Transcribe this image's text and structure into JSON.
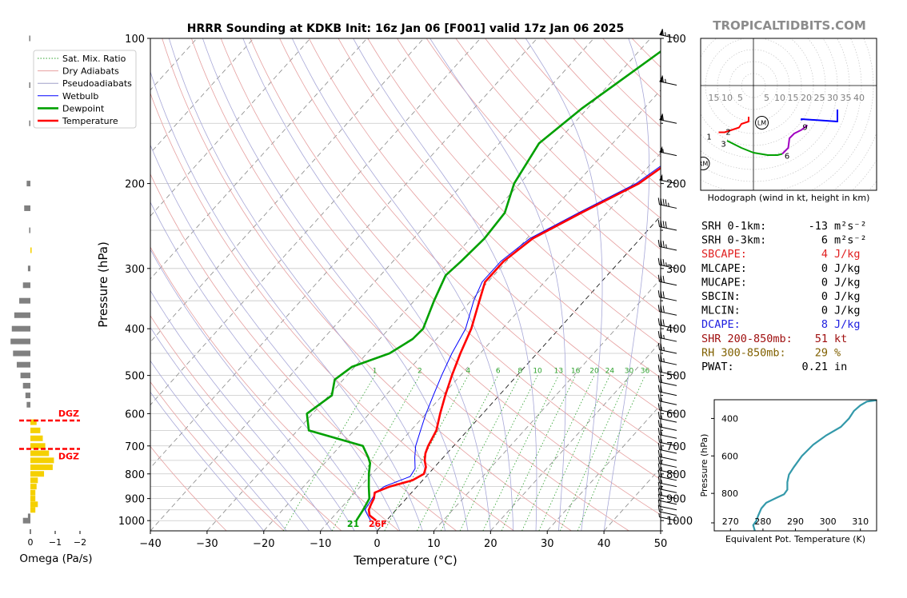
{
  "site": {
    "watermark": "TROPICALTIDBITS.COM"
  },
  "chart_data": [
    {
      "type": "line",
      "kind": "skew-t log-p sounding",
      "title": "HRRR Sounding at KDKB Init: 16z Jan 06 [F001] valid 17z Jan 06 2025",
      "xlabel": "Temperature (°C)",
      "ylabel": "Pressure (hPa)",
      "xlim": [
        -40,
        50
      ],
      "ylim": [
        1050,
        100
      ],
      "yscale": "log",
      "xticks": [
        "−40",
        "−30",
        "−20",
        "−10",
        "0",
        "10",
        "20",
        "30",
        "40",
        "50"
      ],
      "yticks": [
        "100",
        "200",
        "300",
        "400",
        "500",
        "600",
        "700",
        "800",
        "900",
        "1000"
      ],
      "legend": {
        "position": "top-left",
        "entries": [
          {
            "label": "Sat. Mix. Ratio",
            "color": "#2ca02c",
            "style": "dotted"
          },
          {
            "label": "Dry Adiabats",
            "color": "#e8a0a0",
            "style": "solid"
          },
          {
            "label": "Pseudoadiabats",
            "color": "#a0a0c8",
            "style": "solid"
          },
          {
            "label": "Wetbulb",
            "color": "#0000ff",
            "style": "solid"
          },
          {
            "label": "Dewpoint",
            "color": "#00a000",
            "style": "solid"
          },
          {
            "label": "Temperature",
            "color": "#ff0000",
            "style": "solid"
          }
        ]
      },
      "mixing_ratio_labels": [
        "1",
        "2",
        "4",
        "6",
        "8",
        "10",
        "13",
        "16",
        "20",
        "24",
        "30",
        "36"
      ],
      "surface_label": {
        "dewpoint": "21",
        "temperature": "26F"
      },
      "series": [
        {
          "name": "Temperature",
          "color": "#ff0000",
          "points": [
            [
              1000,
              -1.8
            ],
            [
              975,
              -3.8
            ],
            [
              950,
              -4.8
            ],
            [
              925,
              -5.3
            ],
            [
              900,
              -5.7
            ],
            [
              875,
              -6.5
            ],
            [
              850,
              -4.8
            ],
            [
              825,
              -1.8
            ],
            [
              800,
              -0.8
            ],
            [
              775,
              -1.5
            ],
            [
              750,
              -2.8
            ],
            [
              725,
              -3.8
            ],
            [
              700,
              -4.5
            ],
            [
              650,
              -5.5
            ],
            [
              600,
              -7.5
            ],
            [
              550,
              -9.5
            ],
            [
              500,
              -11.5
            ],
            [
              450,
              -13.5
            ],
            [
              400,
              -15.5
            ],
            [
              350,
              -18.5
            ],
            [
              320,
              -20.5
            ],
            [
              290,
              -20.5
            ],
            [
              260,
              -19
            ],
            [
              230,
              -14.5
            ],
            [
              200,
              -9
            ],
            [
              175,
              -6.5
            ],
            [
              150,
              -4.5
            ],
            [
              125,
              -2
            ],
            [
              100,
              1
            ]
          ]
        },
        {
          "name": "Dewpoint",
          "color": "#00a000",
          "points": [
            [
              1000,
              -5.3
            ],
            [
              950,
              -5.8
            ],
            [
              900,
              -6.5
            ],
            [
              850,
              -8.5
            ],
            [
              800,
              -10.5
            ],
            [
              760,
              -12
            ],
            [
              740,
              -13.2
            ],
            [
              700,
              -16
            ],
            [
              650,
              -28
            ],
            [
              600,
              -31
            ],
            [
              550,
              -29.5
            ],
            [
              510,
              -31.5
            ],
            [
              480,
              -30.5
            ],
            [
              450,
              -26
            ],
            [
              420,
              -24.2
            ],
            [
              400,
              -24
            ],
            [
              350,
              -26.5
            ],
            [
              310,
              -28.5
            ],
            [
              290,
              -28
            ],
            [
              260,
              -27.5
            ],
            [
              230,
              -28
            ],
            [
              200,
              -31
            ],
            [
              165,
              -33
            ],
            [
              140,
              -31
            ],
            [
              100,
              -25
            ]
          ]
        },
        {
          "name": "Wetbulb",
          "color": "#0000ff",
          "points": [
            [
              1000,
              -2.8
            ],
            [
              950,
              -5.5
            ],
            [
              900,
              -6
            ],
            [
              875,
              -6.3
            ],
            [
              850,
              -5.8
            ],
            [
              810,
              -2.8
            ],
            [
              780,
              -3.2
            ],
            [
              740,
              -5
            ],
            [
              700,
              -6.7
            ],
            [
              650,
              -8.3
            ],
            [
              600,
              -10
            ],
            [
              550,
              -11.6
            ],
            [
              500,
              -13.3
            ],
            [
              450,
              -15
            ],
            [
              400,
              -16.5
            ],
            [
              350,
              -19.5
            ],
            [
              320,
              -21
            ],
            [
              290,
              -21
            ],
            [
              260,
              -19.5
            ],
            [
              230,
              -15
            ],
            [
              200,
              -9.5
            ],
            [
              175,
              -7
            ],
            [
              150,
              -5
            ],
            [
              125,
              -2.5
            ],
            [
              100,
              0.5
            ]
          ]
        }
      ]
    },
    {
      "type": "bar",
      "name": "omega profile",
      "xlabel": "Omega (Pa/s)",
      "xticks": [
        "0",
        "−1",
        "−2"
      ],
      "dgz_label": "DGZ",
      "dgz_layer_hpa": [
        620,
        710
      ],
      "bars": [
        {
          "p": 1000,
          "omega": 0.3,
          "color": "#808080"
        },
        {
          "p": 980,
          "omega": 0.1,
          "color": "#808080"
        },
        {
          "p": 950,
          "omega": -0.2,
          "color": "#f5d000"
        },
        {
          "p": 925,
          "omega": -0.3,
          "color": "#f5d000"
        },
        {
          "p": 900,
          "omega": -0.2,
          "color": "#f5d000"
        },
        {
          "p": 875,
          "omega": -0.2,
          "color": "#f5d000"
        },
        {
          "p": 850,
          "omega": -0.25,
          "color": "#f5d000"
        },
        {
          "p": 825,
          "omega": -0.3,
          "color": "#f5d000"
        },
        {
          "p": 800,
          "omega": -0.55,
          "color": "#f5d000"
        },
        {
          "p": 775,
          "omega": -0.9,
          "color": "#f5d000"
        },
        {
          "p": 750,
          "omega": -0.95,
          "color": "#f5d000"
        },
        {
          "p": 725,
          "omega": -0.75,
          "color": "#f5d000"
        },
        {
          "p": 700,
          "omega": -0.6,
          "color": "#f5d000"
        },
        {
          "p": 675,
          "omega": -0.5,
          "color": "#f5d000"
        },
        {
          "p": 650,
          "omega": -0.4,
          "color": "#f5d000"
        },
        {
          "p": 625,
          "omega": -0.25,
          "color": "#f5d000"
        },
        {
          "p": 575,
          "omega": 0.15,
          "color": "#808080"
        },
        {
          "p": 550,
          "omega": 0.2,
          "color": "#808080"
        },
        {
          "p": 525,
          "omega": 0.3,
          "color": "#808080"
        },
        {
          "p": 500,
          "omega": 0.4,
          "color": "#808080"
        },
        {
          "p": 475,
          "omega": 0.55,
          "color": "#808080"
        },
        {
          "p": 450,
          "omega": 0.7,
          "color": "#808080"
        },
        {
          "p": 425,
          "omega": 0.8,
          "color": "#808080"
        },
        {
          "p": 400,
          "omega": 0.75,
          "color": "#808080"
        },
        {
          "p": 375,
          "omega": 0.65,
          "color": "#808080"
        },
        {
          "p": 350,
          "omega": 0.45,
          "color": "#808080"
        },
        {
          "p": 325,
          "omega": 0.3,
          "color": "#808080"
        },
        {
          "p": 300,
          "omega": 0.1,
          "color": "#808080"
        },
        {
          "p": 275,
          "omega": -0.05,
          "color": "#f5d000"
        },
        {
          "p": 250,
          "omega": 0.05,
          "color": "#808080"
        },
        {
          "p": 225,
          "omega": 0.25,
          "color": "#808080"
        },
        {
          "p": 200,
          "omega": 0.15,
          "color": "#808080"
        },
        {
          "p": 150,
          "omega": 0.05,
          "color": "#808080"
        },
        {
          "p": 125,
          "omega": 0.05,
          "color": "#808080"
        },
        {
          "p": 100,
          "omega": 0.05,
          "color": "#808080"
        }
      ]
    },
    {
      "type": "line",
      "name": "hodograph",
      "caption": "Hodograph (wind in kt, height in km)",
      "ring_labels": [
        "15",
        "10",
        "5",
        "5",
        "10",
        "15",
        "20",
        "25",
        "30",
        "35",
        "40"
      ],
      "markers": [
        {
          "label": "LM"
        },
        {
          "label": "RM"
        }
      ],
      "height_labels": [
        "1",
        "2",
        "3",
        "6",
        "9"
      ],
      "segments": [
        {
          "color": "#ff0000",
          "uv": [
            [
              -14.5,
              -19.5
            ],
            [
              -12,
              -19.5
            ],
            [
              -9,
              -18.5
            ],
            [
              -6,
              -17.5
            ],
            [
              -5,
              -16
            ],
            [
              -2,
              -15
            ],
            [
              -2,
              -13
            ]
          ]
        },
        {
          "color": "#00a000",
          "uv": [
            [
              -11,
              -23
            ],
            [
              -5,
              -26
            ],
            [
              0,
              -28
            ],
            [
              6,
              -29
            ],
            [
              10,
              -29
            ],
            [
              12,
              -28.5
            ]
          ]
        },
        {
          "color": "#a000c0",
          "uv": [
            [
              12,
              -28.5
            ],
            [
              14.5,
              -26
            ],
            [
              15,
              -22
            ],
            [
              17,
              -20
            ],
            [
              20,
              -18.5
            ],
            [
              22.5,
              -16.5
            ]
          ]
        },
        {
          "color": "#0000ff",
          "uv": [
            [
              20,
              -14.5
            ],
            [
              20,
              -14
            ],
            [
              35,
              -15
            ],
            [
              35,
              -10
            ]
          ]
        }
      ]
    },
    {
      "type": "line",
      "name": "equivalent potential temperature profile",
      "xlabel": "Equivalent Pot. Temperature (K)",
      "ylabel": "Pressure (hPa)",
      "xlim": [
        265,
        315
      ],
      "ylim": [
        1000,
        300
      ],
      "xticks": [
        "270",
        "280",
        "290",
        "300",
        "310"
      ],
      "yticks": [
        "400",
        "600",
        "800"
      ],
      "color": "#3399aa",
      "points": [
        [
          1000,
          277.5
        ],
        [
          970,
          277
        ],
        [
          945,
          278
        ],
        [
          920,
          278.5
        ],
        [
          880,
          279.5
        ],
        [
          850,
          281
        ],
        [
          825,
          284
        ],
        [
          805,
          286.5
        ],
        [
          780,
          287.5
        ],
        [
          740,
          287.5
        ],
        [
          700,
          288
        ],
        [
          660,
          289.5
        ],
        [
          600,
          292
        ],
        [
          540,
          295.5
        ],
        [
          490,
          299.5
        ],
        [
          445,
          304
        ],
        [
          400,
          306.5
        ],
        [
          360,
          308
        ],
        [
          330,
          310
        ],
        [
          310,
          312
        ],
        [
          300,
          316
        ]
      ]
    }
  ],
  "stats": [
    {
      "label": "SRH 0-1km:",
      "value": "-13",
      "unit": "m²s⁻²",
      "color": "#000000"
    },
    {
      "label": "SRH 0-3km:",
      "value": "6",
      "unit": "m²s⁻²",
      "color": "#000000"
    },
    {
      "label": "SBCAPE:",
      "value": "4",
      "unit": "J/kg",
      "color": "#e02020"
    },
    {
      "label": "MLCAPE:",
      "value": "0",
      "unit": "J/kg",
      "color": "#000000"
    },
    {
      "label": "MUCAPE:",
      "value": "0",
      "unit": "J/kg",
      "color": "#000000"
    },
    {
      "label": "SBCIN:",
      "value": "0",
      "unit": "J/kg",
      "color": "#000000"
    },
    {
      "label": "MLCIN:",
      "value": "0",
      "unit": "J/kg",
      "color": "#000000"
    },
    {
      "label": "DCAPE:",
      "value": "8",
      "unit": "J/kg",
      "color": "#2020e0"
    },
    {
      "label": "SHR 200-850mb:",
      "value": "51",
      "unit": "kt",
      "color": "#a01010"
    },
    {
      "label": "RH 300-850mb:",
      "value": "29",
      "unit": "%",
      "color": "#806000"
    },
    {
      "label": "PWAT:",
      "value": "0.21",
      "unit": "in",
      "color": "#000000"
    }
  ],
  "wind_barbs": [
    {
      "p": 100,
      "kt": 65
    },
    {
      "p": 125,
      "kt": 65
    },
    {
      "p": 150,
      "kt": 60
    },
    {
      "p": 175,
      "kt": 55
    },
    {
      "p": 200,
      "kt": 50
    },
    {
      "p": 225,
      "kt": 45
    },
    {
      "p": 250,
      "kt": 40
    },
    {
      "p": 275,
      "kt": 35
    },
    {
      "p": 300,
      "kt": 35
    },
    {
      "p": 325,
      "kt": 30
    },
    {
      "p": 350,
      "kt": 30
    },
    {
      "p": 375,
      "kt": 30
    },
    {
      "p": 400,
      "kt": 30
    },
    {
      "p": 425,
      "kt": 25
    },
    {
      "p": 450,
      "kt": 25
    },
    {
      "p": 475,
      "kt": 25
    },
    {
      "p": 500,
      "kt": 20
    },
    {
      "p": 525,
      "kt": 20
    },
    {
      "p": 550,
      "kt": 20
    },
    {
      "p": 575,
      "kt": 15
    },
    {
      "p": 600,
      "kt": 15
    },
    {
      "p": 625,
      "kt": 15
    },
    {
      "p": 650,
      "kt": 15
    },
    {
      "p": 675,
      "kt": 15
    },
    {
      "p": 700,
      "kt": 15
    },
    {
      "p": 725,
      "kt": 15
    },
    {
      "p": 750,
      "kt": 15
    },
    {
      "p": 775,
      "kt": 15
    },
    {
      "p": 800,
      "kt": 15
    },
    {
      "p": 825,
      "kt": 15
    },
    {
      "p": 850,
      "kt": 15
    },
    {
      "p": 875,
      "kt": 15
    },
    {
      "p": 900,
      "kt": 15
    },
    {
      "p": 925,
      "kt": 10
    },
    {
      "p": 950,
      "kt": 10
    },
    {
      "p": 975,
      "kt": 10
    },
    {
      "p": 1000,
      "kt": 5
    }
  ]
}
